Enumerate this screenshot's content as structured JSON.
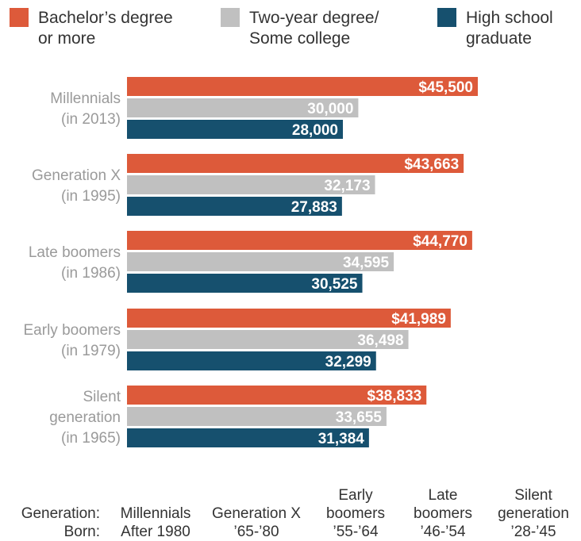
{
  "legend": [
    {
      "line1": "Bachelor’s degree",
      "line2": "or more",
      "color": "#dd5a3a"
    },
    {
      "line1": "Two-year degree/",
      "line2": "Some college",
      "color": "#c0c0c0"
    },
    {
      "line1": "High school",
      "line2": "graduate",
      "color": "#16506e"
    }
  ],
  "chart_data": {
    "type": "bar",
    "orientation": "horizontal",
    "categories": [
      [
        "Millennials",
        "(in 2013)"
      ],
      [
        "Generation X",
        "(in 1995)"
      ],
      [
        "Late boomers",
        "(in 1986)"
      ],
      [
        "Early boomers",
        "(in 1979)"
      ],
      [
        "Silent",
        "generation",
        "(in 1965)"
      ]
    ],
    "series": [
      {
        "name": "Bachelor’s degree or more",
        "color": "#dd5a3a",
        "values": [
          45500,
          43663,
          44770,
          41989,
          38833
        ],
        "labels": [
          "$45,500",
          "$43,663",
          "$44,770",
          "$41,989",
          "$38,833"
        ]
      },
      {
        "name": "Two-year degree/Some college",
        "color": "#c0c0c0",
        "values": [
          30000,
          32173,
          34595,
          36498,
          33655
        ],
        "labels": [
          "30,000",
          "32,173",
          "34,595",
          "36,498",
          "33,655"
        ]
      },
      {
        "name": "High school graduate",
        "color": "#16506e",
        "values": [
          28000,
          27883,
          30525,
          32299,
          31384
        ],
        "labels": [
          "28,000",
          "27,883",
          "30,525",
          "32,299",
          "31,384"
        ]
      }
    ],
    "xlim": [
      0,
      50000
    ],
    "grid": false,
    "legend_position": "top"
  },
  "generations_table": {
    "row_labels": [
      "Generation:",
      "Born:"
    ],
    "columns": [
      {
        "name": [
          "Millennials"
        ],
        "born": "After 1980"
      },
      {
        "name": [
          "Generation X"
        ],
        "born": "’65-’80"
      },
      {
        "name": [
          "Early",
          "boomers"
        ],
        "born": "’55-’64"
      },
      {
        "name": [
          "Late",
          "boomers"
        ],
        "born": "’46-’54"
      },
      {
        "name": [
          "Silent",
          "generation"
        ],
        "born": "’28-’45"
      }
    ]
  }
}
